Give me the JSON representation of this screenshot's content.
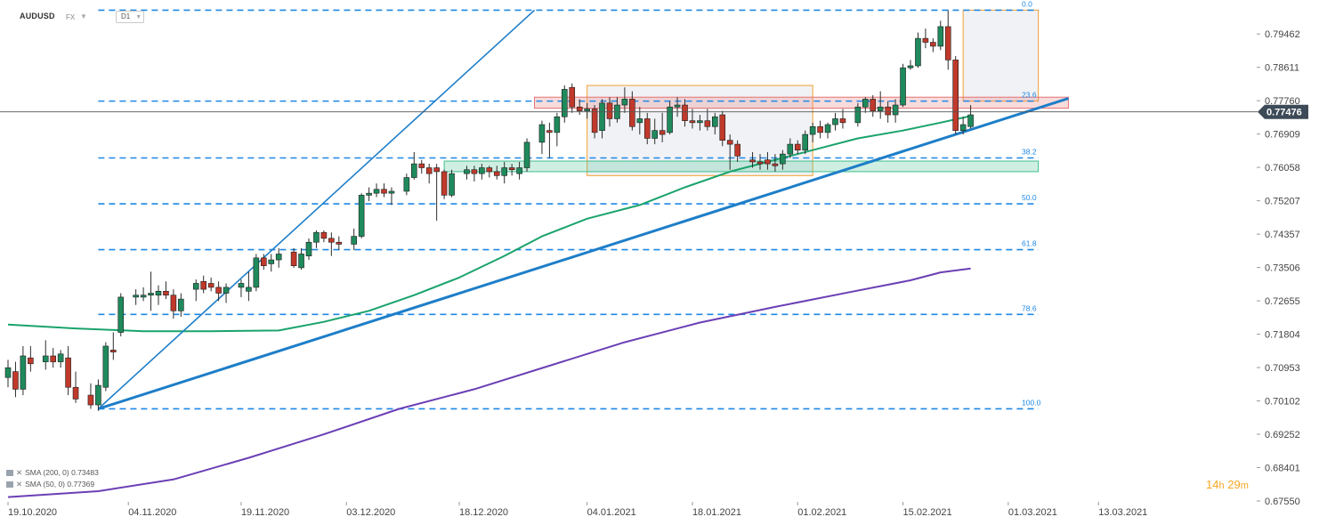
{
  "header": {
    "symbol": "AUDUSD",
    "market": "FX",
    "timeframe": "D1"
  },
  "indicators": [
    {
      "label": "SMA (200, 0) 0.73483",
      "color": "#6b3fb5"
    },
    {
      "label": "SMA (50, 0) 0.77369",
      "color": "#1aa36b"
    }
  ],
  "countdown": {
    "hours": "14",
    "h": "h",
    "minutes": "29",
    "m": "m"
  },
  "colors": {
    "up": "#1f8a5c",
    "down": "#c0392b",
    "fib": "#1e88e5",
    "trend": "#1e7ec8",
    "price_tag": "#3d4a57",
    "resistance_zone": "#e57373",
    "support_zone": "#3fbf8e",
    "box_stroke": "#f0a030"
  },
  "chart_data": {
    "type": "candlestick",
    "symbol": "AUDUSD",
    "timeframe": "D1",
    "y_ticks": [
      "0.79462",
      "0.78611",
      "0.77760",
      "0.76909",
      "0.76058",
      "0.75207",
      "0.74357",
      "0.73506",
      "0.72655",
      "0.71804",
      "0.70953",
      "0.70102",
      "0.69252",
      "0.68401",
      "0.67550"
    ],
    "ylim": [
      0.6755,
      0.8017
    ],
    "x_ticks": [
      "19.10.2020",
      "04.11.2020",
      "19.11.2020",
      "03.12.2020",
      "18.12.2020",
      "04.01.2021",
      "18.01.2021",
      "01.02.2021",
      "15.02.2021",
      "01.03.2021",
      "13.03.2021"
    ],
    "x_tick_days": [
      0,
      16,
      31,
      45,
      60,
      77,
      91,
      105,
      119,
      133,
      145
    ],
    "current_price": "0.77476",
    "candles": [
      [
        0,
        0.707,
        0.7115,
        0.7045,
        0.7095
      ],
      [
        1,
        0.7085,
        0.711,
        0.702,
        0.704
      ],
      [
        2,
        0.704,
        0.715,
        0.7025,
        0.7125
      ],
      [
        3,
        0.712,
        0.715,
        0.7085,
        0.7105
      ],
      [
        5,
        0.711,
        0.7165,
        0.709,
        0.7125
      ],
      [
        6,
        0.7125,
        0.7145,
        0.7095,
        0.711
      ],
      [
        7,
        0.711,
        0.714,
        0.7095,
        0.713
      ],
      [
        8,
        0.712,
        0.715,
        0.7025,
        0.7045
      ],
      [
        9,
        0.7045,
        0.7085,
        0.7005,
        0.7015
      ],
      [
        11,
        0.7025,
        0.7055,
        0.699,
        0.7
      ],
      [
        12,
        0.7,
        0.7065,
        0.6985,
        0.705
      ],
      [
        13,
        0.7045,
        0.716,
        0.7035,
        0.715
      ],
      [
        14,
        0.714,
        0.7185,
        0.7115,
        0.7135
      ],
      [
        15,
        0.7185,
        0.7285,
        0.7175,
        0.7275
      ],
      [
        17,
        0.7275,
        0.7295,
        0.7255,
        0.728
      ],
      [
        18,
        0.7275,
        0.73,
        0.7265,
        0.728
      ],
      [
        19,
        0.728,
        0.734,
        0.724,
        0.7285
      ],
      [
        20,
        0.728,
        0.7305,
        0.7255,
        0.729
      ],
      [
        21,
        0.729,
        0.7315,
        0.727,
        0.728
      ],
      [
        22,
        0.728,
        0.7295,
        0.722,
        0.724
      ],
      [
        23,
        0.724,
        0.7285,
        0.7225,
        0.727
      ],
      [
        25,
        0.7295,
        0.732,
        0.7265,
        0.731
      ],
      [
        26,
        0.7315,
        0.733,
        0.7285,
        0.7295
      ],
      [
        27,
        0.731,
        0.7325,
        0.729,
        0.73
      ],
      [
        28,
        0.73,
        0.7315,
        0.7265,
        0.7285
      ],
      [
        29,
        0.7285,
        0.731,
        0.726,
        0.73
      ],
      [
        31,
        0.73,
        0.732,
        0.7275,
        0.731
      ],
      [
        32,
        0.729,
        0.734,
        0.7265,
        0.73
      ],
      [
        33,
        0.73,
        0.7385,
        0.729,
        0.7375
      ],
      [
        34,
        0.7375,
        0.7385,
        0.7345,
        0.7355
      ],
      [
        35,
        0.736,
        0.7385,
        0.734,
        0.737
      ],
      [
        36,
        0.737,
        0.74,
        0.735,
        0.7385
      ],
      [
        38,
        0.739,
        0.74,
        0.735,
        0.7355
      ],
      [
        39,
        0.735,
        0.74,
        0.7345,
        0.7385
      ],
      [
        40,
        0.738,
        0.7425,
        0.737,
        0.7415
      ],
      [
        41,
        0.7415,
        0.7445,
        0.74,
        0.744
      ],
      [
        42,
        0.744,
        0.7445,
        0.7415,
        0.7425
      ],
      [
        43,
        0.7425,
        0.744,
        0.738,
        0.7415
      ],
      [
        44,
        0.7415,
        0.743,
        0.7395,
        0.741
      ],
      [
        46,
        0.741,
        0.745,
        0.7395,
        0.743
      ],
      [
        47,
        0.743,
        0.754,
        0.7425,
        0.7535
      ],
      [
        48,
        0.7535,
        0.7555,
        0.752,
        0.754
      ],
      [
        49,
        0.754,
        0.7565,
        0.753,
        0.755
      ],
      [
        50,
        0.755,
        0.7565,
        0.753,
        0.754
      ],
      [
        51,
        0.754,
        0.7555,
        0.751,
        0.7545
      ],
      [
        53,
        0.7545,
        0.759,
        0.7535,
        0.758
      ],
      [
        54,
        0.758,
        0.7645,
        0.7575,
        0.7615
      ],
      [
        55,
        0.7615,
        0.7625,
        0.759,
        0.7605
      ],
      [
        56,
        0.7605,
        0.7615,
        0.7565,
        0.759
      ],
      [
        57,
        0.7605,
        0.7615,
        0.747,
        0.7595
      ],
      [
        58,
        0.7595,
        0.76,
        0.7525,
        0.7535
      ],
      [
        59,
        0.7535,
        0.76,
        0.753,
        0.759
      ],
      [
        61,
        0.759,
        0.761,
        0.7575,
        0.76
      ],
      [
        62,
        0.76,
        0.761,
        0.757,
        0.759
      ],
      [
        63,
        0.759,
        0.7615,
        0.7575,
        0.7605
      ],
      [
        64,
        0.7605,
        0.761,
        0.758,
        0.7595
      ],
      [
        65,
        0.7595,
        0.761,
        0.7575,
        0.7585
      ],
      [
        66,
        0.7585,
        0.762,
        0.7565,
        0.7605
      ],
      [
        67,
        0.7605,
        0.7615,
        0.7585,
        0.76
      ],
      [
        68,
        0.759,
        0.762,
        0.7575,
        0.7605
      ],
      [
        69,
        0.7605,
        0.768,
        0.7595,
        0.767
      ],
      [
        71,
        0.767,
        0.7725,
        0.764,
        0.7715
      ],
      [
        72,
        0.77,
        0.772,
        0.763,
        0.7695
      ],
      [
        73,
        0.7695,
        0.7745,
        0.766,
        0.7735
      ],
      [
        74,
        0.7735,
        0.7815,
        0.772,
        0.7805
      ],
      [
        75,
        0.781,
        0.782,
        0.7745,
        0.776
      ],
      [
        76,
        0.776,
        0.778,
        0.774,
        0.775
      ],
      [
        77,
        0.775,
        0.777,
        0.773,
        0.7755
      ],
      [
        78,
        0.7755,
        0.7765,
        0.768,
        0.7695
      ],
      [
        79,
        0.77,
        0.778,
        0.768,
        0.777
      ],
      [
        80,
        0.777,
        0.7785,
        0.771,
        0.773
      ],
      [
        81,
        0.773,
        0.7785,
        0.772,
        0.7765
      ],
      [
        82,
        0.7765,
        0.781,
        0.7745,
        0.778
      ],
      [
        83,
        0.778,
        0.78,
        0.77,
        0.771
      ],
      [
        84,
        0.772,
        0.776,
        0.769,
        0.773
      ],
      [
        85,
        0.773,
        0.7745,
        0.7665,
        0.768
      ],
      [
        86,
        0.768,
        0.773,
        0.7665,
        0.77
      ],
      [
        87,
        0.77,
        0.7745,
        0.767,
        0.769
      ],
      [
        88,
        0.7695,
        0.7775,
        0.769,
        0.776
      ],
      [
        89,
        0.776,
        0.7785,
        0.7735,
        0.7765
      ],
      [
        90,
        0.7765,
        0.778,
        0.771,
        0.7725
      ],
      [
        91,
        0.7725,
        0.7755,
        0.7705,
        0.772
      ],
      [
        92,
        0.772,
        0.774,
        0.77,
        0.7725
      ],
      [
        93,
        0.7725,
        0.7755,
        0.77,
        0.771
      ],
      [
        94,
        0.771,
        0.7745,
        0.769,
        0.7735
      ],
      [
        95,
        0.774,
        0.775,
        0.766,
        0.7675
      ],
      [
        96,
        0.7675,
        0.769,
        0.76,
        0.7665
      ],
      [
        97,
        0.7665,
        0.7675,
        0.762,
        0.7635
      ],
      [
        99,
        0.7625,
        0.7645,
        0.7605,
        0.762
      ],
      [
        100,
        0.762,
        0.764,
        0.76,
        0.7615
      ],
      [
        101,
        0.7625,
        0.7645,
        0.76,
        0.7615
      ],
      [
        102,
        0.7615,
        0.764,
        0.7595,
        0.761
      ],
      [
        103,
        0.7615,
        0.765,
        0.76,
        0.764
      ],
      [
        104,
        0.764,
        0.768,
        0.763,
        0.7665
      ],
      [
        105,
        0.7665,
        0.7675,
        0.764,
        0.765
      ],
      [
        106,
        0.765,
        0.77,
        0.764,
        0.769
      ],
      [
        107,
        0.769,
        0.772,
        0.767,
        0.771
      ],
      [
        108,
        0.771,
        0.7725,
        0.768,
        0.7695
      ],
      [
        109,
        0.7695,
        0.772,
        0.768,
        0.7715
      ],
      [
        110,
        0.7715,
        0.7745,
        0.77,
        0.773
      ],
      [
        111,
        0.773,
        0.7755,
        0.7705,
        0.772
      ],
      [
        113,
        0.772,
        0.777,
        0.771,
        0.776
      ],
      [
        114,
        0.776,
        0.7785,
        0.7745,
        0.778
      ],
      [
        115,
        0.778,
        0.779,
        0.7735,
        0.775
      ],
      [
        116,
        0.775,
        0.78,
        0.773,
        0.776
      ],
      [
        117,
        0.776,
        0.7775,
        0.772,
        0.774
      ],
      [
        118,
        0.774,
        0.778,
        0.772,
        0.7765
      ],
      [
        119,
        0.7765,
        0.787,
        0.776,
        0.786
      ],
      [
        120,
        0.786,
        0.788,
        0.7855,
        0.7865
      ],
      [
        121,
        0.7865,
        0.795,
        0.786,
        0.7935
      ],
      [
        122,
        0.7935,
        0.796,
        0.791,
        0.7925
      ],
      [
        123,
        0.7925,
        0.7935,
        0.79,
        0.7915
      ],
      [
        124,
        0.7915,
        0.798,
        0.7905,
        0.7965
      ],
      [
        125,
        0.7965,
        0.8007,
        0.7855,
        0.788
      ],
      [
        126,
        0.788,
        0.789,
        0.769,
        0.77
      ],
      [
        127,
        0.77,
        0.7735,
        0.769,
        0.7715
      ],
      [
        128,
        0.771,
        0.7765,
        0.7705,
        0.774
      ]
    ],
    "sma50": [
      [
        0,
        0.7205
      ],
      [
        9,
        0.7195
      ],
      [
        18,
        0.7188
      ],
      [
        27,
        0.7188
      ],
      [
        36,
        0.719
      ],
      [
        42,
        0.7212
      ],
      [
        48,
        0.724
      ],
      [
        54,
        0.728
      ],
      [
        60,
        0.7325
      ],
      [
        66,
        0.738
      ],
      [
        71,
        0.743
      ],
      [
        77,
        0.7475
      ],
      [
        84,
        0.751
      ],
      [
        90,
        0.7555
      ],
      [
        96,
        0.7595
      ],
      [
        101,
        0.762
      ],
      [
        107,
        0.765
      ],
      [
        113,
        0.768
      ],
      [
        119,
        0.77
      ],
      [
        124,
        0.772
      ],
      [
        128,
        0.7737
      ]
    ],
    "sma200": [
      [
        0,
        0.6765
      ],
      [
        12,
        0.678
      ],
      [
        22,
        0.681
      ],
      [
        32,
        0.6865
      ],
      [
        42,
        0.6925
      ],
      [
        52,
        0.699
      ],
      [
        62,
        0.704
      ],
      [
        72,
        0.71
      ],
      [
        82,
        0.716
      ],
      [
        92,
        0.721
      ],
      [
        102,
        0.725
      ],
      [
        112,
        0.7288
      ],
      [
        120,
        0.7318
      ],
      [
        124,
        0.7338
      ],
      [
        128,
        0.7348
      ]
    ],
    "fib_levels": [
      {
        "label": "0.0",
        "price": 0.8007
      },
      {
        "label": "23.6",
        "price": 0.7775
      },
      {
        "label": "38.2",
        "price": 0.763
      },
      {
        "label": "50.0",
        "price": 0.7513
      },
      {
        "label": "61.8",
        "price": 0.7396
      },
      {
        "label": "78.6",
        "price": 0.7231
      },
      {
        "label": "100.0",
        "price": 0.699
      }
    ],
    "trendlines": [
      {
        "name": "trendline-main",
        "from": [
          12,
          0.699
        ],
        "to": [
          141,
          0.7782
        ]
      },
      {
        "name": "trendline-steep",
        "from": [
          12,
          0.699
        ],
        "to": [
          70,
          0.8007
        ]
      }
    ],
    "zones": [
      {
        "name": "resistance-zone",
        "from_day": 70,
        "to_day": 141,
        "price_lo": 0.7757,
        "price_hi": 0.7785
      },
      {
        "name": "support-zone",
        "from_day": 58,
        "to_day": 137,
        "price_lo": 0.7595,
        "price_hi": 0.7622
      }
    ],
    "boxes": [
      {
        "name": "consolidation-box",
        "from_day": 77,
        "to_day": 107,
        "price_lo": 0.7585,
        "price_hi": 0.7815
      },
      {
        "name": "top-box",
        "from_day": 127,
        "to_day": 137,
        "price_lo": 0.7775,
        "price_hi": 0.8007
      }
    ]
  }
}
